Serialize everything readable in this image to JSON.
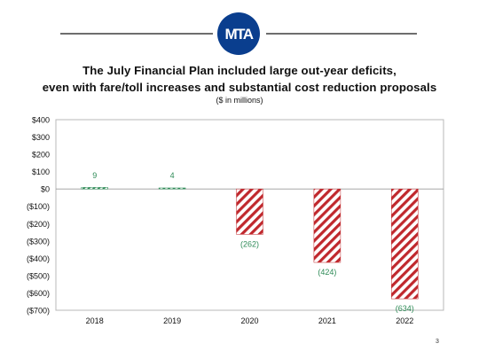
{
  "logo": {
    "text": "MTA",
    "color": "#0a3e8e"
  },
  "header": {
    "title_line1": "The July Financial Plan included large out-year deficits,",
    "title_line2": "even with fare/toll increases and substantial cost reduction proposals"
  },
  "chart_data": {
    "type": "bar",
    "subtitle": "($ in millions)",
    "categories": [
      "2018",
      "2019",
      "2020",
      "2021",
      "2022"
    ],
    "values": [
      9,
      4,
      -262,
      -424,
      -634
    ],
    "data_labels": [
      "9",
      "4",
      "(262)",
      "(424)",
      "(634)"
    ],
    "ylim": [
      -700,
      400
    ],
    "yticks": [
      400,
      300,
      200,
      100,
      0,
      -100,
      -200,
      -300,
      -400,
      -500,
      -600,
      -700
    ],
    "ytick_labels": [
      "$400",
      "$300",
      "$200",
      "$100",
      "$0",
      "($100)",
      "($200)",
      "($300)",
      "($400)",
      "($500)",
      "($600)",
      "($700)"
    ],
    "grid": false,
    "colors": {
      "negative_stripe": "#c0282d",
      "positive": "#2e8b57",
      "label": "#2e8b57",
      "frame": "#b8b8b8"
    }
  },
  "footer": {
    "page_number": "3"
  }
}
